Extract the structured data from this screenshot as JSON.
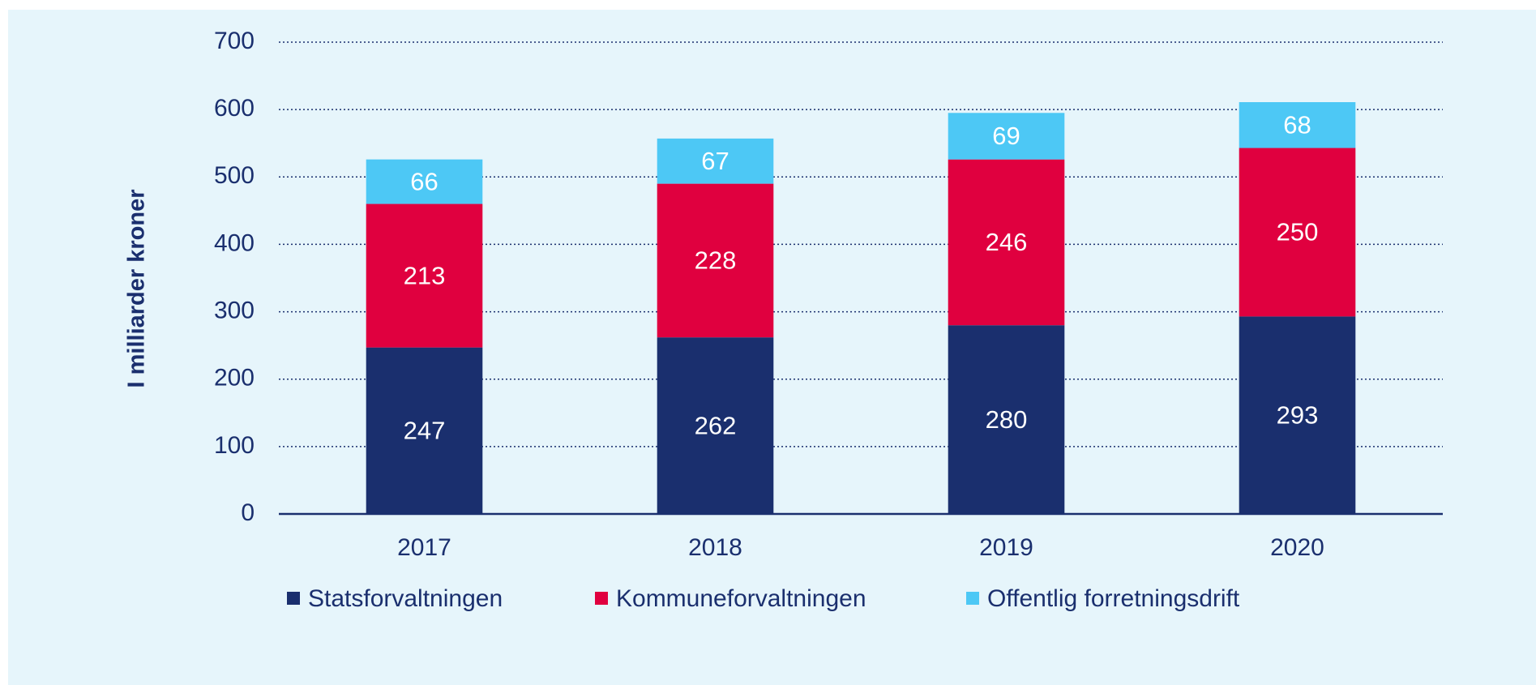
{
  "chart_data": {
    "type": "bar",
    "stacked": true,
    "y_label": "I milliarder kroner",
    "categories": [
      "2017",
      "2018",
      "2019",
      "2020"
    ],
    "series": [
      {
        "name": "Statsforvaltningen",
        "color": "#1a2f6e",
        "values": [
          247,
          262,
          280,
          293
        ]
      },
      {
        "name": "Kommuneforvaltningen",
        "color": "#e0003f",
        "values": [
          213,
          228,
          246,
          250
        ]
      },
      {
        "name": "Offentlig forretningsdrift",
        "color": "#4dc8f5",
        "values": [
          66,
          67,
          69,
          68
        ]
      }
    ],
    "ylim": [
      0,
      700
    ],
    "yticks": [
      0,
      100,
      200,
      300,
      400,
      500,
      600,
      700
    ],
    "grid": true
  }
}
